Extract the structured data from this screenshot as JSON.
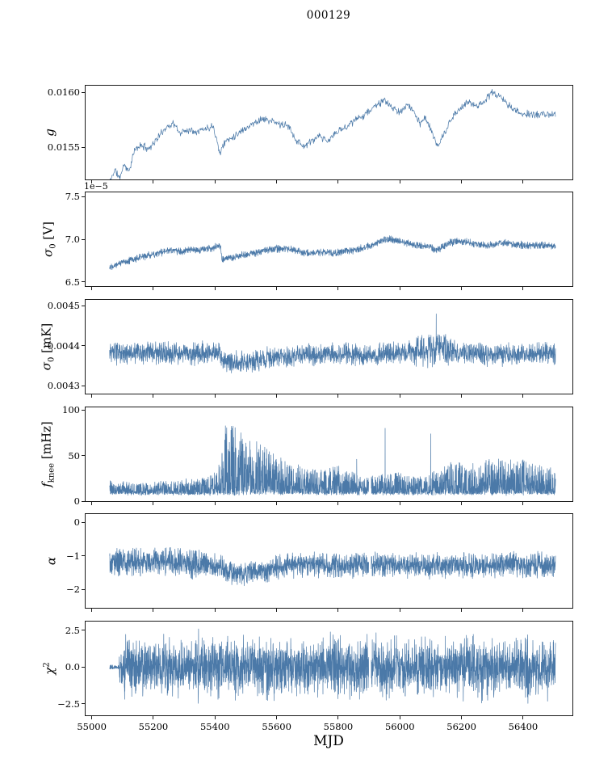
{
  "figure": {
    "title": "000129",
    "xlabel": "MJD",
    "line_color": "#4b79a8",
    "background": "#ffffff"
  },
  "x_axis": {
    "min": 54980,
    "max": 56560,
    "ticks": [
      {
        "v": 55000,
        "label": "55000"
      },
      {
        "v": 55200,
        "label": "55200"
      },
      {
        "v": 55400,
        "label": "55400"
      },
      {
        "v": 55600,
        "label": "55600"
      },
      {
        "v": 55800,
        "label": "55800"
      },
      {
        "v": 56000,
        "label": "56000"
      },
      {
        "v": 56200,
        "label": "56200"
      },
      {
        "v": 56400,
        "label": "56400"
      }
    ]
  },
  "chart_data": [
    {
      "name": "g",
      "type": "line",
      "ylabel": {
        "main": "g"
      },
      "ylim": [
        0.01521,
        0.01606
      ],
      "yticks": [
        {
          "v": 0.0155,
          "label": "0.0155"
        },
        {
          "v": 0.016,
          "label": "0.0160"
        }
      ],
      "x_range": [
        55058,
        56505
      ],
      "n": 950,
      "seed": 11,
      "noise": {
        "model": "tri",
        "amp": 4e-05
      },
      "trend": [
        [
          55058,
          0.01518
        ],
        [
          55075,
          0.0153
        ],
        [
          55090,
          0.01522
        ],
        [
          55105,
          0.01535
        ],
        [
          55120,
          0.01528
        ],
        [
          55140,
          0.01548
        ],
        [
          55160,
          0.01552
        ],
        [
          55185,
          0.01549
        ],
        [
          55210,
          0.01557
        ],
        [
          55240,
          0.01568
        ],
        [
          55265,
          0.01572
        ],
        [
          55285,
          0.01563
        ],
        [
          55310,
          0.01566
        ],
        [
          55340,
          0.01565
        ],
        [
          55370,
          0.01567
        ],
        [
          55395,
          0.0157
        ],
        [
          55415,
          0.01545
        ],
        [
          55435,
          0.01556
        ],
        [
          55460,
          0.0156
        ],
        [
          55490,
          0.01566
        ],
        [
          55520,
          0.01571
        ],
        [
          55550,
          0.01576
        ],
        [
          55580,
          0.01574
        ],
        [
          55610,
          0.01571
        ],
        [
          55640,
          0.01569
        ],
        [
          55665,
          0.01556
        ],
        [
          55690,
          0.01551
        ],
        [
          55715,
          0.01556
        ],
        [
          55740,
          0.0156
        ],
        [
          55765,
          0.01555
        ],
        [
          55790,
          0.01563
        ],
        [
          55815,
          0.01567
        ],
        [
          55840,
          0.01572
        ],
        [
          55870,
          0.01577
        ],
        [
          55900,
          0.01583
        ],
        [
          55930,
          0.0159
        ],
        [
          55955,
          0.01592
        ],
        [
          55975,
          0.01586
        ],
        [
          56000,
          0.01581
        ],
        [
          56020,
          0.01589
        ],
        [
          56040,
          0.01585
        ],
        [
          56065,
          0.01572
        ],
        [
          56085,
          0.01577
        ],
        [
          56105,
          0.01562
        ],
        [
          56125,
          0.01551
        ],
        [
          56145,
          0.01563
        ],
        [
          56170,
          0.01577
        ],
        [
          56195,
          0.01585
        ],
        [
          56220,
          0.01591
        ],
        [
          56250,
          0.01588
        ],
        [
          56275,
          0.01592
        ],
        [
          56300,
          0.016
        ],
        [
          56320,
          0.01597
        ],
        [
          56340,
          0.01592
        ],
        [
          56365,
          0.01585
        ],
        [
          56390,
          0.01581
        ],
        [
          56420,
          0.0158
        ],
        [
          56460,
          0.0158
        ],
        [
          56505,
          0.01579
        ]
      ],
      "spikes": [],
      "gaps": []
    },
    {
      "name": "sigma0-v",
      "type": "line",
      "ylabel": {
        "main": "σ",
        "sub": "0",
        "unit": " [V]"
      },
      "offset_label": "1e−5",
      "ylim": [
        6.45,
        7.55
      ],
      "yticks": [
        {
          "v": 6.5,
          "label": "6.5"
        },
        {
          "v": 7.0,
          "label": "7.0"
        },
        {
          "v": 7.5,
          "label": "7.5"
        }
      ],
      "x_range": [
        55058,
        56505
      ],
      "n": 2200,
      "seed": 22,
      "noise": {
        "model": "tri",
        "amp": 0.05
      },
      "trend": [
        [
          55058,
          6.68
        ],
        [
          55090,
          6.72
        ],
        [
          55130,
          6.76
        ],
        [
          55170,
          6.8
        ],
        [
          55210,
          6.83
        ],
        [
          55250,
          6.87
        ],
        [
          55290,
          6.86
        ],
        [
          55330,
          6.87
        ],
        [
          55370,
          6.88
        ],
        [
          55405,
          6.92
        ],
        [
          55418,
          6.93
        ],
        [
          55422,
          6.76
        ],
        [
          55460,
          6.79
        ],
        [
          55500,
          6.82
        ],
        [
          55540,
          6.85
        ],
        [
          55580,
          6.88
        ],
        [
          55620,
          6.89
        ],
        [
          55660,
          6.87
        ],
        [
          55690,
          6.84
        ],
        [
          55720,
          6.84
        ],
        [
          55750,
          6.85
        ],
        [
          55790,
          6.84
        ],
        [
          55830,
          6.86
        ],
        [
          55870,
          6.89
        ],
        [
          55910,
          6.93
        ],
        [
          55945,
          6.99
        ],
        [
          55975,
          7.0
        ],
        [
          56005,
          6.97
        ],
        [
          56040,
          6.94
        ],
        [
          56070,
          6.92
        ],
        [
          56100,
          6.92
        ],
        [
          56115,
          6.87
        ],
        [
          56135,
          6.9
        ],
        [
          56160,
          6.96
        ],
        [
          56190,
          6.98
        ],
        [
          56220,
          6.96
        ],
        [
          56250,
          6.94
        ],
        [
          56280,
          6.93
        ],
        [
          56310,
          6.94
        ],
        [
          56340,
          6.96
        ],
        [
          56370,
          6.94
        ],
        [
          56400,
          6.93
        ],
        [
          56440,
          6.93
        ],
        [
          56480,
          6.92
        ],
        [
          56505,
          6.93
        ]
      ],
      "spikes": [],
      "gaps": []
    },
    {
      "name": "sigma0-mk",
      "type": "line",
      "ylabel": {
        "main": "σ",
        "sub": "0",
        "unit": " [mK]"
      },
      "ylim": [
        0.00428,
        0.004515
      ],
      "yticks": [
        {
          "v": 0.0043,
          "label": "0.0043"
        },
        {
          "v": 0.0044,
          "label": "0.0044"
        },
        {
          "v": 0.0045,
          "label": "0.0045"
        }
      ],
      "x_range": [
        55058,
        56505
      ],
      "n": 2200,
      "seed": 33,
      "noise": {
        "model": "tri",
        "amp": 3.2e-05
      },
      "amp_env": [
        [
          55058,
          1
        ],
        [
          56040,
          1
        ],
        [
          56060,
          1.5
        ],
        [
          56160,
          1.5
        ],
        [
          56180,
          1
        ],
        [
          56505,
          1
        ]
      ],
      "trend": [
        [
          55058,
          0.00438
        ],
        [
          55150,
          0.004382
        ],
        [
          55250,
          0.00438
        ],
        [
          55350,
          0.004381
        ],
        [
          55415,
          0.004382
        ],
        [
          55425,
          0.004363
        ],
        [
          55470,
          0.004358
        ],
        [
          55520,
          0.00436
        ],
        [
          55560,
          0.004368
        ],
        [
          55600,
          0.004372
        ],
        [
          55650,
          0.004374
        ],
        [
          55700,
          0.004377
        ],
        [
          55800,
          0.004378
        ],
        [
          55900,
          0.004378
        ],
        [
          56000,
          0.00438
        ],
        [
          56060,
          0.004385
        ],
        [
          56100,
          0.004392
        ],
        [
          56130,
          0.004397
        ],
        [
          56160,
          0.00439
        ],
        [
          56200,
          0.004382
        ],
        [
          56250,
          0.00438
        ],
        [
          56350,
          0.004378
        ],
        [
          56450,
          0.00438
        ],
        [
          56505,
          0.004381
        ]
      ],
      "spikes": [
        [
          56118,
          0.00448
        ]
      ],
      "gaps": []
    },
    {
      "name": "fknee",
      "type": "line",
      "ylabel": {
        "main": "f",
        "sub": "knee",
        "unit": " [mHz]"
      },
      "ylim": [
        0,
        103
      ],
      "yticks": [
        {
          "v": 0,
          "label": "0"
        },
        {
          "v": 50,
          "label": "50"
        },
        {
          "v": 100,
          "label": "100"
        }
      ],
      "x_range": [
        55058,
        56505
      ],
      "n": 2800,
      "seed": 44,
      "noise": {
        "model": "spike",
        "floor": 8,
        "k": 2.2,
        "jitter": 2.0
      },
      "trend": [
        [
          55058,
          22
        ],
        [
          55150,
          20
        ],
        [
          55250,
          22
        ],
        [
          55350,
          25
        ],
        [
          55400,
          30
        ],
        [
          55420,
          55
        ],
        [
          55435,
          90
        ],
        [
          55460,
          85
        ],
        [
          55490,
          75
        ],
        [
          55520,
          70
        ],
        [
          55560,
          60
        ],
        [
          55600,
          50
        ],
        [
          55640,
          42
        ],
        [
          55690,
          38
        ],
        [
          55740,
          35
        ],
        [
          55800,
          38
        ],
        [
          55850,
          32
        ],
        [
          55900,
          28
        ],
        [
          55950,
          30
        ],
        [
          56000,
          32
        ],
        [
          56050,
          28
        ],
        [
          56100,
          30
        ],
        [
          56150,
          40
        ],
        [
          56200,
          45
        ],
        [
          56250,
          40
        ],
        [
          56300,
          48
        ],
        [
          56350,
          45
        ],
        [
          56400,
          48
        ],
        [
          56450,
          40
        ],
        [
          56505,
          35
        ]
      ],
      "spikes": [
        [
          55860,
          46
        ],
        [
          55952,
          80
        ],
        [
          56100,
          74
        ]
      ],
      "gaps": [
        [
          55899,
          55907
        ]
      ]
    },
    {
      "name": "alpha",
      "type": "line",
      "ylabel": {
        "main": "α"
      },
      "ylim": [
        -2.55,
        0.25
      ],
      "yticks": [
        {
          "v": 0,
          "label": "0"
        },
        {
          "v": -1,
          "label": "−1"
        },
        {
          "v": -2,
          "label": "−2"
        }
      ],
      "x_range": [
        55058,
        56505
      ],
      "n": 2600,
      "seed": 55,
      "noise": {
        "model": "tri",
        "amp": 0.42
      },
      "amp_env": [
        [
          55058,
          1.15
        ],
        [
          55320,
          1.15
        ],
        [
          55380,
          1.0
        ],
        [
          56505,
          1.0
        ]
      ],
      "trend": [
        [
          55058,
          -1.15
        ],
        [
          55150,
          -1.18
        ],
        [
          55250,
          -1.15
        ],
        [
          55330,
          -1.25
        ],
        [
          55360,
          -1.2
        ],
        [
          55420,
          -1.35
        ],
        [
          55450,
          -1.5
        ],
        [
          55480,
          -1.55
        ],
        [
          55520,
          -1.5
        ],
        [
          55560,
          -1.45
        ],
        [
          55600,
          -1.35
        ],
        [
          55650,
          -1.28
        ],
        [
          55700,
          -1.25
        ],
        [
          55750,
          -1.28
        ],
        [
          55800,
          -1.3
        ],
        [
          55850,
          -1.28
        ],
        [
          55900,
          -1.25
        ],
        [
          55950,
          -1.28
        ],
        [
          56000,
          -1.27
        ],
        [
          56050,
          -1.28
        ],
        [
          56100,
          -1.3
        ],
        [
          56150,
          -1.28
        ],
        [
          56200,
          -1.26
        ],
        [
          56250,
          -1.28
        ],
        [
          56300,
          -1.27
        ],
        [
          56350,
          -1.28
        ],
        [
          56400,
          -1.27
        ],
        [
          56450,
          -1.26
        ],
        [
          56505,
          -1.25
        ]
      ],
      "spikes": [],
      "gaps": [
        [
          55899,
          55907
        ]
      ]
    },
    {
      "name": "chi2",
      "type": "line",
      "ylabel": {
        "main": "χ",
        "sup": "2"
      },
      "ylim": [
        -3.3,
        3.1
      ],
      "yticks": [
        {
          "v": -2.5,
          "label": "−2.5"
        },
        {
          "v": 0,
          "label": "0.0"
        },
        {
          "v": 2.5,
          "label": "2.5"
        }
      ],
      "x_range": [
        55058,
        56505
      ],
      "n": 3000,
      "seed": 66,
      "noise": {
        "model": "norm",
        "amp": 1.5
      },
      "amp_env": [
        [
          55058,
          0.08
        ],
        [
          55088,
          0.08
        ],
        [
          55092,
          1
        ],
        [
          56505,
          1
        ]
      ],
      "trend": [
        [
          55058,
          0
        ],
        [
          56505,
          0
        ]
      ],
      "spikes": [],
      "gaps": [
        [
          55899,
          55907
        ]
      ]
    }
  ]
}
